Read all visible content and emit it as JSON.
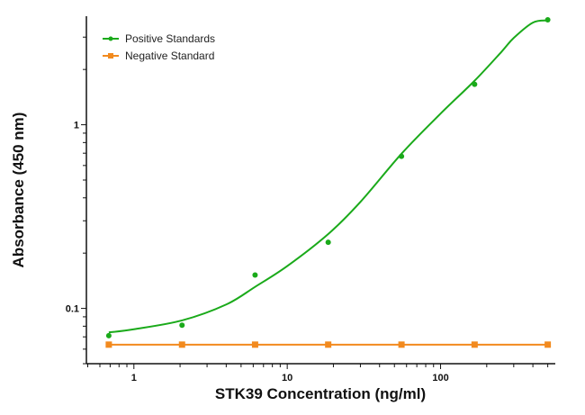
{
  "chart_data": {
    "type": "scatter",
    "xlabel": "STK39 Concentration (ng/ml)",
    "ylabel": "Absorbance (450 nm)",
    "x_scale": "log",
    "y_scale": "log",
    "xlim": [
      0.49,
      560
    ],
    "ylim": [
      0.05,
      3.9
    ],
    "x_ticks": [
      {
        "value": 1,
        "label": "1"
      },
      {
        "value": 10,
        "label": "10"
      },
      {
        "value": 100,
        "label": "100"
      }
    ],
    "y_ticks": [
      {
        "value": 0.1,
        "label": "0.1"
      },
      {
        "value": 1,
        "label": "1"
      }
    ],
    "grid": false,
    "legend_position": "top-left",
    "series": [
      {
        "name": "Positive Standards",
        "color": "#1aaa1a",
        "marker": "circle",
        "x": [
          0.686,
          2.06,
          6.17,
          18.5,
          55.6,
          166.7,
          500
        ],
        "y": [
          0.071,
          0.081,
          0.152,
          0.229,
          0.673,
          1.66,
          3.73
        ],
        "fit_curve": {
          "x": [
            0.686,
            1,
            2.06,
            4,
            6.17,
            10,
            18.5,
            30,
            56,
            100,
            167,
            250,
            300,
            400,
            500
          ],
          "y": [
            0.074,
            0.077,
            0.086,
            0.105,
            0.131,
            0.17,
            0.254,
            0.38,
            0.7,
            1.15,
            1.74,
            2.5,
            2.97,
            3.6,
            3.7
          ]
        }
      },
      {
        "name": "Negative Standard",
        "color": "#f28a1e",
        "marker": "square",
        "x": [
          0.686,
          2.06,
          6.17,
          18.5,
          55.6,
          166.7,
          500
        ],
        "y": [
          0.0635,
          0.0635,
          0.0635,
          0.0635,
          0.0635,
          0.0635,
          0.0635
        ]
      }
    ]
  }
}
